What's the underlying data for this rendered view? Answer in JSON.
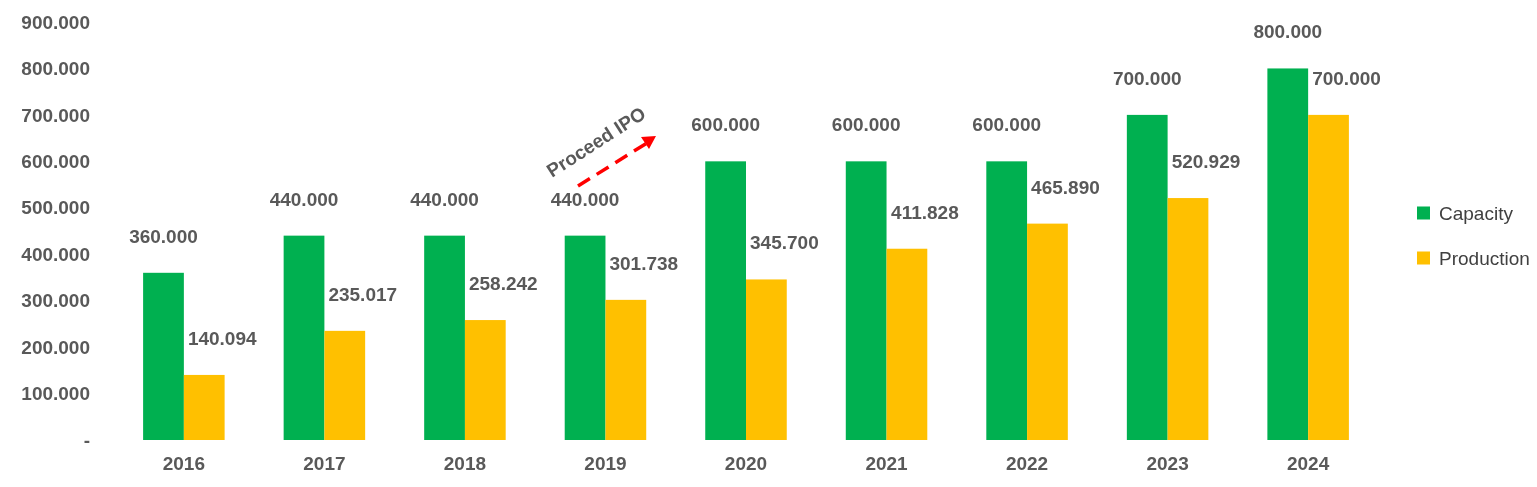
{
  "chart_data": {
    "type": "bar",
    "categories": [
      "2016",
      "2017",
      "2018",
      "2019",
      "2020",
      "2021",
      "2022",
      "2023",
      "2024"
    ],
    "series": [
      {
        "name": "Capacity",
        "color": "#00b050",
        "values": [
          360000,
          440000,
          440000,
          440000,
          600000,
          600000,
          600000,
          700000,
          800000
        ],
        "value_labels": [
          "360.000",
          "440.000",
          "440.000",
          "440.000",
          "600.000",
          "600.000",
          "600.000",
          "700.000",
          "800.000"
        ]
      },
      {
        "name": "Production",
        "color": "#ffc000",
        "values": [
          140094,
          235017,
          258242,
          301738,
          345700,
          411828,
          465890,
          520929,
          700000
        ],
        "value_labels": [
          "140.094",
          "235.017",
          "258.242",
          "301.738",
          "345.700",
          "411.828",
          "465.890",
          "520.929",
          "700.000"
        ]
      }
    ],
    "ylim": [
      0,
      900000
    ],
    "yticks": [
      {
        "value": 0,
        "label": "-"
      },
      {
        "value": 100000,
        "label": "100.000"
      },
      {
        "value": 200000,
        "label": "200.000"
      },
      {
        "value": 300000,
        "label": "300.000"
      },
      {
        "value": 400000,
        "label": "400.000"
      },
      {
        "value": 500000,
        "label": "500.000"
      },
      {
        "value": 600000,
        "label": "600.000"
      },
      {
        "value": 700000,
        "label": "700.000"
      },
      {
        "value": 800000,
        "label": "800.000"
      },
      {
        "value": 900000,
        "label": "900.000"
      }
    ],
    "annotations": [
      "Proceed IPO"
    ],
    "legend": "right",
    "grid": false
  }
}
